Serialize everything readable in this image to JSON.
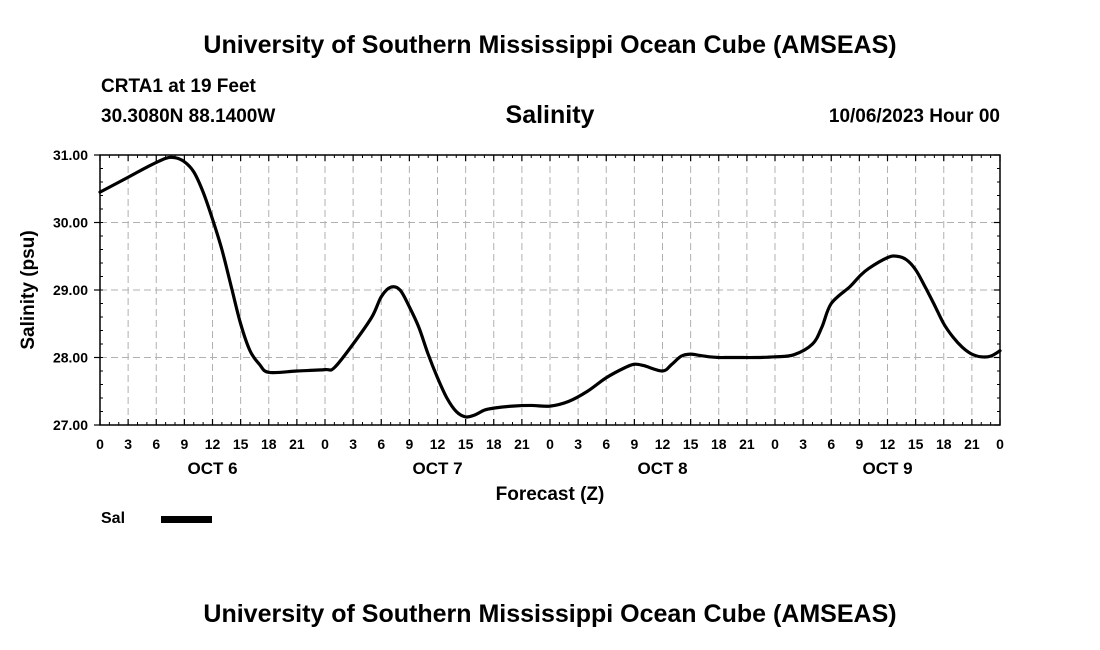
{
  "header": {
    "title": "University of Southern Mississippi Ocean Cube (AMSEAS)",
    "station": "CRTA1 at 19 Feet",
    "coords": "30.3080N  88.1400W",
    "variable": "Salinity",
    "run_time": "10/06/2023 Hour 00"
  },
  "footer": {
    "title": "University of Southern Mississippi Ocean Cube (AMSEAS)"
  },
  "chart_data": {
    "type": "line",
    "title": "Salinity",
    "xlabel": "Forecast (Z)",
    "ylabel": "Salinity (psu)",
    "xlim": [
      0,
      96
    ],
    "ylim": [
      27.0,
      31.0
    ],
    "y_ticks": [
      "27.00",
      "28.00",
      "29.00",
      "30.00",
      "31.00"
    ],
    "y_tick_values": [
      27,
      28,
      29,
      30,
      31
    ],
    "x_ticks": [
      0,
      3,
      6,
      9,
      12,
      15,
      18,
      21,
      24,
      27,
      30,
      33,
      36,
      39,
      42,
      45,
      48,
      51,
      54,
      57,
      60,
      63,
      66,
      69,
      72,
      75,
      78,
      81,
      84,
      87,
      90,
      93,
      96
    ],
    "x_tick_labels": [
      "0",
      "3",
      "6",
      "9",
      "12",
      "15",
      "18",
      "21",
      "0",
      "3",
      "6",
      "9",
      "12",
      "15",
      "18",
      "21",
      "0",
      "3",
      "6",
      "9",
      "12",
      "15",
      "18",
      "21",
      "0",
      "3",
      "6",
      "9",
      "12",
      "15",
      "18",
      "21",
      "0"
    ],
    "day_labels": [
      {
        "label": "OCT 6",
        "x": 12
      },
      {
        "label": "OCT 7",
        "x": 36
      },
      {
        "label": "OCT 8",
        "x": 60
      },
      {
        "label": "OCT 9",
        "x": 84
      }
    ],
    "grid": true,
    "series": [
      {
        "name": "Sal",
        "color": "#000000",
        "x": [
          0,
          3,
          5,
          7,
          8,
          9,
          10,
          11,
          12,
          13,
          14,
          15,
          16,
          17,
          18,
          21,
          24,
          25,
          27,
          29,
          30,
          31,
          32,
          33,
          34,
          35,
          36,
          37,
          38,
          39,
          40,
          41,
          42,
          44,
          46,
          48,
          50,
          52,
          54,
          56,
          57,
          58,
          60,
          61,
          62,
          63,
          64,
          65,
          66,
          67,
          68,
          70,
          72,
          74,
          76,
          77,
          78,
          80,
          81,
          82,
          84,
          85,
          86,
          87,
          88,
          89,
          90,
          91,
          92,
          93,
          94,
          95,
          96
        ],
        "y": [
          30.45,
          30.67,
          30.82,
          30.95,
          30.96,
          30.9,
          30.75,
          30.45,
          30.05,
          29.6,
          29.05,
          28.5,
          28.1,
          27.9,
          27.78,
          27.8,
          27.82,
          27.85,
          28.2,
          28.6,
          28.9,
          29.04,
          29.0,
          28.75,
          28.45,
          28.05,
          27.7,
          27.4,
          27.2,
          27.12,
          27.15,
          27.22,
          27.25,
          27.28,
          27.29,
          27.28,
          27.35,
          27.5,
          27.7,
          27.85,
          27.9,
          27.88,
          27.8,
          27.9,
          28.02,
          28.05,
          28.03,
          28.01,
          28.0,
          28.0,
          28.0,
          28.0,
          28.01,
          28.04,
          28.2,
          28.45,
          28.8,
          29.05,
          29.2,
          29.32,
          29.48,
          29.5,
          29.45,
          29.3,
          29.05,
          28.78,
          28.5,
          28.3,
          28.15,
          28.05,
          28.01,
          28.02,
          28.1
        ]
      }
    ],
    "legend": {
      "label": "Sal",
      "position": "bottom-left"
    }
  }
}
